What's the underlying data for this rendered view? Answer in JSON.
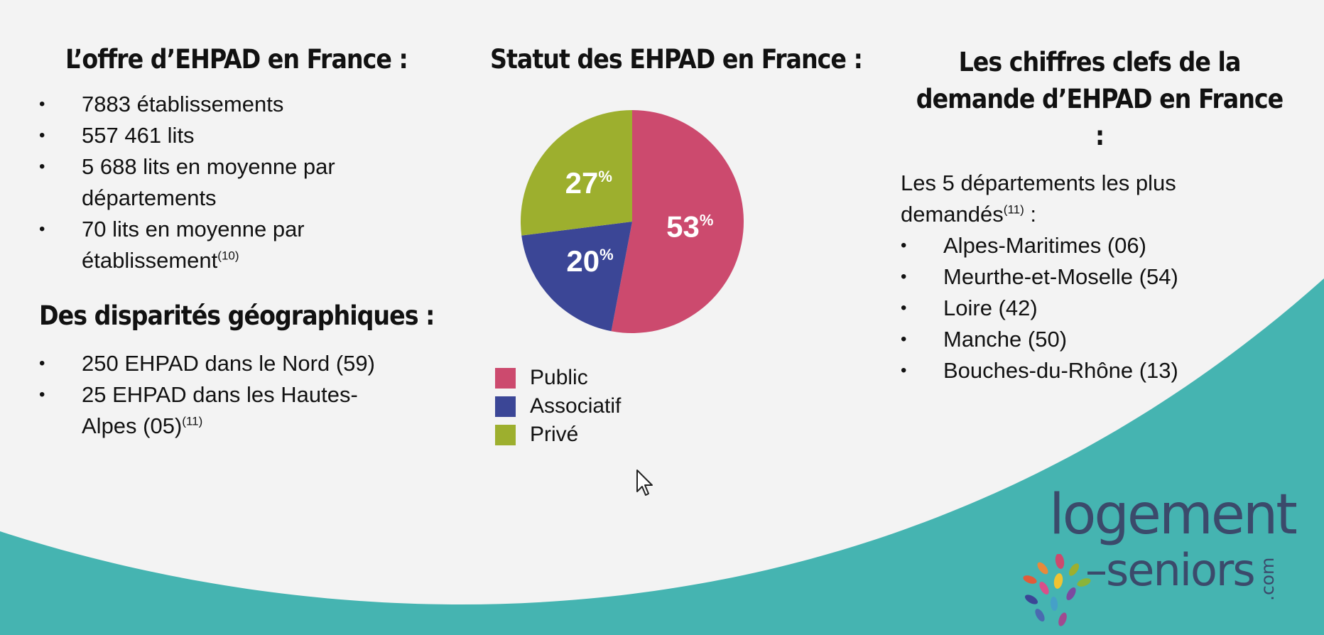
{
  "left": {
    "heading1": "L’offre d’EHPAD en France :",
    "offer_items": [
      {
        "text": "7883 établissements",
        "note": ""
      },
      {
        "text": "557 461 lits",
        "note": ""
      },
      {
        "text": "5 688 lits en moyenne par départements",
        "note": ""
      },
      {
        "text": "70 lits en moyenne par établissement",
        "note": "(10)"
      }
    ],
    "heading2": "Des disparités géographiques :",
    "geo_items": [
      {
        "text": "250 EHPAD dans le Nord (59)",
        "note": ""
      },
      {
        "text": "25 EHPAD dans les Hautes-Alpes (05)",
        "note": "(11)"
      }
    ]
  },
  "middle": {
    "heading": "Statut des EHPAD en France :"
  },
  "right": {
    "heading": "Les chiffres clefs de la demande d’EHPAD en France :",
    "intro": "Les  5 départements les plus demandés",
    "intro_note": "(11)",
    "intro_suffix": " :",
    "items": [
      "Alpes-Maritimes (06)",
      "Meurthe-et-Moselle (54)",
      "Loire (42)",
      "Manche (50)",
      "Bouches-du-Rhône (13)"
    ]
  },
  "chart_data": {
    "type": "pie",
    "title": "Statut des EHPAD en France :",
    "categories": [
      "Public",
      "Associatif",
      "Privé"
    ],
    "values": [
      53,
      20,
      27
    ],
    "value_labels": [
      "53",
      "20",
      "27"
    ],
    "unit": "%",
    "colors": [
      "#cc4a6e",
      "#3b4696",
      "#9daf2e"
    ],
    "legend": "bottom-left"
  },
  "logo": {
    "line1": "logement",
    "line2": "–seniors",
    "suffix": ".com"
  },
  "colors": {
    "background": "#f3f3f3",
    "wave": "#45b4b1",
    "logo_text": "#3b4a6b"
  },
  "icons": [
    "cursor-icon",
    "logo-flower-icon"
  ]
}
